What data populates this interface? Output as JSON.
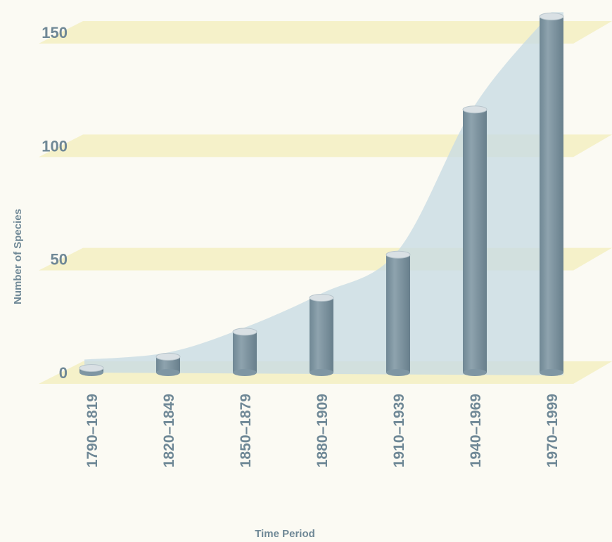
{
  "chart_data": {
    "type": "bar",
    "title": "",
    "xlabel": "Time Period",
    "ylabel": "Number of Species",
    "categories": [
      "1790–1819",
      "1820–1849",
      "1850–1879",
      "1880–1909",
      "1910–1939",
      "1940–1969",
      "1970–1999"
    ],
    "values": [
      2,
      7,
      18,
      33,
      52,
      116,
      157
    ],
    "ylim": [
      0,
      150
    ],
    "yticks": [
      0,
      50,
      100,
      150
    ],
    "grid": true,
    "style": "3d-cylinders-with-trend-area",
    "colors": {
      "bar": "#7f96a3",
      "bar_top": "#d9e0e4",
      "area": "#c9dce3",
      "gridband": "#f3efc1",
      "text": "#6f8896"
    }
  }
}
